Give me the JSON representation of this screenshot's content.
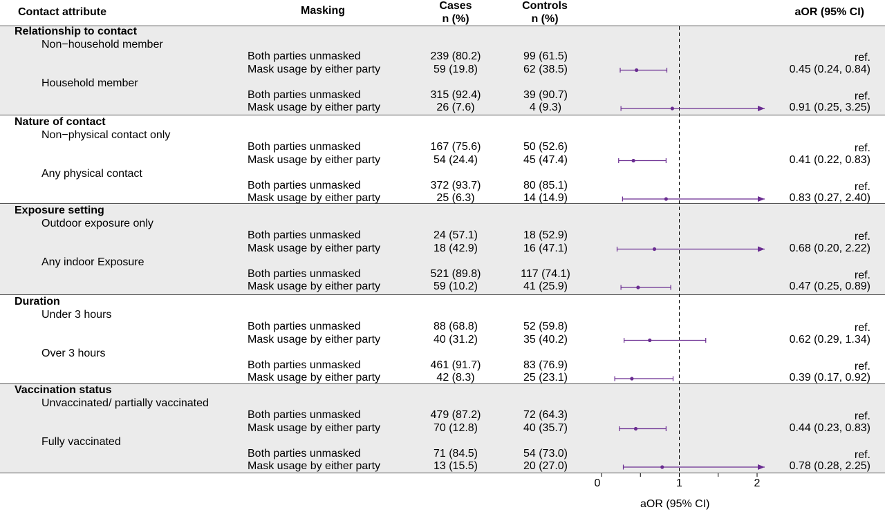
{
  "chart_data": {
    "type": "forest",
    "headers": {
      "attribute": "Contact attribute",
      "masking": "Masking",
      "cases_line1": "Cases",
      "cases_line2": "n (%)",
      "controls_line1": "Controls",
      "controls_line2": "n (%)",
      "aor": "aOR (95% CI)"
    },
    "xlabel": "aOR (95% CI)",
    "xlim": [
      0,
      2.2
    ],
    "xticks": [
      "0",
      "1",
      "2"
    ],
    "reference_line": 1,
    "marker_color": "#6a2c91",
    "shade_color": "#ebebeb",
    "sections": [
      {
        "title": "Relationship to contact",
        "groups": [
          {
            "label": "Non−household member",
            "rows": [
              {
                "masking": "Both parties unmasked",
                "cases": "239 (80.2)",
                "controls": "99 (61.5)",
                "aor_text": "ref."
              },
              {
                "masking": "Mask usage by either party",
                "cases": "59 (19.8)",
                "controls": "62 (38.5)",
                "aor_text": "0.45 (0.24, 0.84)",
                "est": 0.45,
                "lo": 0.24,
                "hi": 0.84
              }
            ]
          },
          {
            "label": "Household member",
            "rows": [
              {
                "masking": "Both parties unmasked",
                "cases": "315 (92.4)",
                "controls": "39 (90.7)",
                "aor_text": "ref."
              },
              {
                "masking": "Mask usage by either party",
                "cases": "26 (7.6)",
                "controls": "4 (9.3)",
                "aor_text": "0.91 (0.25, 3.25)",
                "est": 0.91,
                "lo": 0.25,
                "hi": 3.25
              }
            ]
          }
        ]
      },
      {
        "title": "Nature of contact",
        "groups": [
          {
            "label": "Non−physical contact only",
            "rows": [
              {
                "masking": "Both parties unmasked",
                "cases": "167 (75.6)",
                "controls": "50 (52.6)",
                "aor_text": "ref."
              },
              {
                "masking": "Mask usage by either party",
                "cases": "54 (24.4)",
                "controls": "45 (47.4)",
                "aor_text": "0.41 (0.22, 0.83)",
                "est": 0.41,
                "lo": 0.22,
                "hi": 0.83
              }
            ]
          },
          {
            "label": "Any physical contact",
            "rows": [
              {
                "masking": "Both parties unmasked",
                "cases": "372 (93.7)",
                "controls": "80 (85.1)",
                "aor_text": "ref."
              },
              {
                "masking": "Mask usage by either party",
                "cases": "25 (6.3)",
                "controls": "14 (14.9)",
                "aor_text": "0.83 (0.27, 2.40)",
                "est": 0.83,
                "lo": 0.27,
                "hi": 2.4
              }
            ]
          }
        ]
      },
      {
        "title": "Exposure setting",
        "groups": [
          {
            "label": "Outdoor exposure only",
            "rows": [
              {
                "masking": "Both parties unmasked",
                "cases": "24 (57.1)",
                "controls": "18 (52.9)",
                "aor_text": "ref."
              },
              {
                "masking": "Mask usage by either party",
                "cases": "18 (42.9)",
                "controls": "16 (47.1)",
                "aor_text": "0.68 (0.20, 2.22)",
                "est": 0.68,
                "lo": 0.2,
                "hi": 2.22
              }
            ]
          },
          {
            "label": "Any indoor Exposure",
            "rows": [
              {
                "masking": "Both parties unmasked",
                "cases": "521 (89.8)",
                "controls": "117 (74.1)",
                "aor_text": "ref."
              },
              {
                "masking": "Mask usage by either party",
                "cases": "59 (10.2)",
                "controls": "41 (25.9)",
                "aor_text": "0.47 (0.25, 0.89)",
                "est": 0.47,
                "lo": 0.25,
                "hi": 0.89
              }
            ]
          }
        ]
      },
      {
        "title": "Duration",
        "groups": [
          {
            "label": "Under 3 hours",
            "rows": [
              {
                "masking": "Both parties unmasked",
                "cases": "88 (68.8)",
                "controls": "52 (59.8)",
                "aor_text": "ref."
              },
              {
                "masking": "Mask usage by either party",
                "cases": "40 (31.2)",
                "controls": "35 (40.2)",
                "aor_text": "0.62 (0.29, 1.34)",
                "est": 0.62,
                "lo": 0.29,
                "hi": 1.34
              }
            ]
          },
          {
            "label": "Over 3 hours",
            "rows": [
              {
                "masking": "Both parties unmasked",
                "cases": "461 (91.7)",
                "controls": "83 (76.9)",
                "aor_text": "ref."
              },
              {
                "masking": "Mask usage by either party",
                "cases": "42 (8.3)",
                "controls": "25 (23.1)",
                "aor_text": "0.39 (0.17, 0.92)",
                "est": 0.39,
                "lo": 0.17,
                "hi": 0.92
              }
            ]
          }
        ]
      },
      {
        "title": "Vaccination status",
        "groups": [
          {
            "label": "Unvaccinated/ partially vaccinated",
            "rows": [
              {
                "masking": "Both parties unmasked",
                "cases": "479 (87.2)",
                "controls": "72 (64.3)",
                "aor_text": "ref."
              },
              {
                "masking": "Mask usage by either party",
                "cases": "70 (12.8)",
                "controls": "40 (35.7)",
                "aor_text": "0.44 (0.23, 0.83)",
                "est": 0.44,
                "lo": 0.23,
                "hi": 0.83
              }
            ]
          },
          {
            "label": "Fully vaccinated",
            "rows": [
              {
                "masking": "Both parties unmasked",
                "cases": "71 (84.5)",
                "controls": "54 (73.0)",
                "aor_text": "ref."
              },
              {
                "masking": "Mask usage by either party",
                "cases": "13 (15.5)",
                "controls": "20 (27.0)",
                "aor_text": "0.78 (0.28, 2.25)",
                "est": 0.78,
                "lo": 0.28,
                "hi": 2.25
              }
            ]
          }
        ]
      }
    ]
  }
}
